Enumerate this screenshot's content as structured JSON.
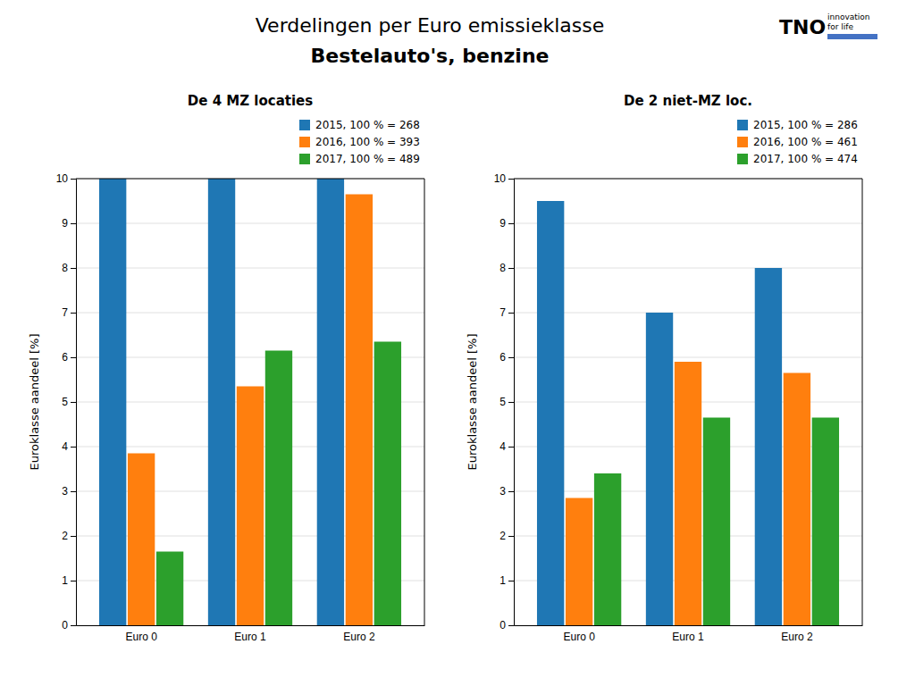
{
  "title": "Verdelingen per Euro emissieklasse",
  "subtitle": "Bestelauto's, benzine",
  "annotations": [
    "TNO",
    "innovation",
    "for life"
  ],
  "chart_data": [
    {
      "type": "bar",
      "title": "De 4 MZ locaties",
      "ylabel": "Euroklasse aandeel [%]",
      "categories": [
        "Euro 0",
        "Euro 1",
        "Euro 2"
      ],
      "series": [
        {
          "name": "2015, 100 % = 268",
          "values": [
            10.0,
            10.0,
            10.0
          ]
        },
        {
          "name": "2016, 100 % = 393",
          "values": [
            3.85,
            5.35,
            9.65
          ]
        },
        {
          "name": "2017, 100 % = 489",
          "values": [
            1.65,
            6.15,
            6.35
          ]
        }
      ],
      "ylim": [
        0,
        10
      ],
      "yticks": [
        0,
        1,
        2,
        3,
        4,
        5,
        6,
        7,
        8,
        9,
        10
      ],
      "grid": true,
      "legend": "upper right"
    },
    {
      "type": "bar",
      "title": "De 2 niet-MZ loc.",
      "ylabel": "Euroklasse aandeel [%]",
      "categories": [
        "Euro 0",
        "Euro 1",
        "Euro 2"
      ],
      "series": [
        {
          "name": "2015, 100 % = 286",
          "values": [
            9.5,
            7.0,
            8.0
          ]
        },
        {
          "name": "2016, 100 % = 461",
          "values": [
            2.85,
            5.9,
            5.65
          ]
        },
        {
          "name": "2017, 100 % = 474",
          "values": [
            3.4,
            4.65,
            4.65
          ]
        }
      ],
      "ylim": [
        0,
        10
      ],
      "yticks": [
        0,
        1,
        2,
        3,
        4,
        5,
        6,
        7,
        8,
        9,
        10
      ],
      "grid": true,
      "legend": "upper right"
    }
  ]
}
